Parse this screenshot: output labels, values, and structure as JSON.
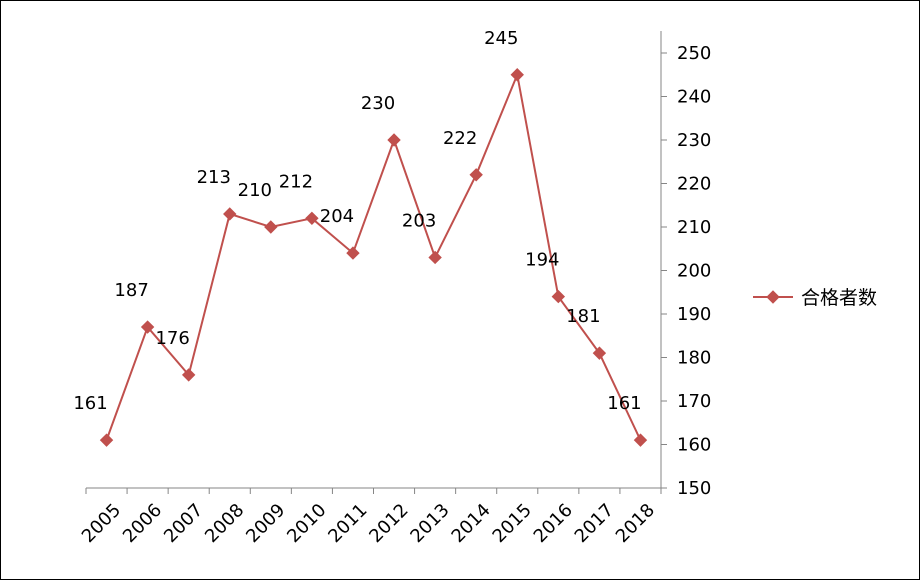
{
  "chart_data": {
    "type": "line",
    "categories": [
      "2005",
      "2006",
      "2007",
      "2008",
      "2009",
      "2010",
      "2011",
      "2012",
      "2013",
      "2014",
      "2015",
      "2016",
      "2017",
      "2018"
    ],
    "series": [
      {
        "name": "合格者数",
        "values": [
          161,
          187,
          176,
          213,
          210,
          212,
          204,
          230,
          203,
          222,
          245,
          194,
          181,
          161
        ],
        "color": "#c0504d",
        "marker": "diamond"
      }
    ],
    "y_ticks": [
      "150",
      "160",
      "170",
      "180",
      "190",
      "200",
      "210",
      "220",
      "230",
      "240",
      "250"
    ],
    "ylim": [
      150,
      250
    ],
    "y_axis_side": "right",
    "grid": false,
    "legend_position": "right",
    "data_labels": true
  }
}
